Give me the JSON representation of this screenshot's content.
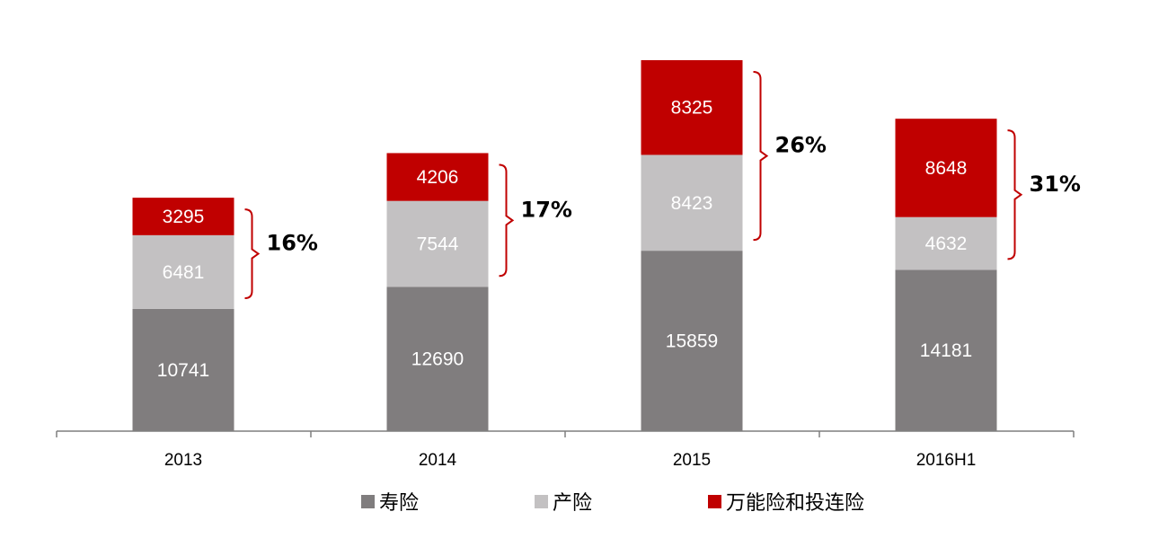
{
  "chart_data": {
    "type": "bar",
    "stacked": true,
    "categories": [
      "2013",
      "2014",
      "2015",
      "2016H1"
    ],
    "series": [
      {
        "name": "寿险",
        "color": "#807d7e",
        "values": [
          10741,
          12690,
          15859,
          14181
        ]
      },
      {
        "name": "产险",
        "color": "#c3c1c2",
        "values": [
          6481,
          7544,
          8423,
          4632
        ]
      },
      {
        "name": "万能险和投连险",
        "color": "#c00000",
        "values": [
          3295,
          4206,
          8325,
          8648
        ]
      }
    ],
    "shares": [
      "16%",
      "17%",
      "26%",
      "31%"
    ],
    "bracket_color": "#c00000",
    "segment_label_color": "#ffffff",
    "axis_color": "#7f7f7f",
    "grid": false,
    "legend_position": "bottom"
  }
}
